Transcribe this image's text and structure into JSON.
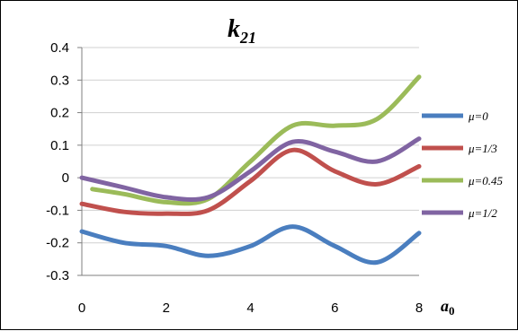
{
  "chart_data": {
    "type": "line",
    "title_main": "k",
    "title_sub": "21",
    "xlabel_main": "a",
    "xlabel_sub": "0",
    "xlim": [
      0,
      8
    ],
    "ylim": [
      -0.3,
      0.4
    ],
    "x_ticks": [
      "0",
      "2",
      "4",
      "6",
      "8"
    ],
    "y_ticks": [
      "0.4",
      "0.3",
      "0.2",
      "0.1",
      "0",
      "-0.1",
      "-0.2",
      "-0.3"
    ],
    "grid": true,
    "legend_position": "right",
    "series": [
      {
        "name": "μ=0",
        "color": "#4a7ebf",
        "x": [
          0,
          1,
          2,
          3,
          4,
          5,
          6,
          7,
          8
        ],
        "y": [
          -0.165,
          -0.2,
          -0.21,
          -0.24,
          -0.21,
          -0.15,
          -0.21,
          -0.26,
          -0.17
        ]
      },
      {
        "name": "μ=1/3",
        "color": "#c0504d",
        "x": [
          0,
          1,
          2,
          3,
          4,
          5,
          6,
          7,
          8
        ],
        "y": [
          -0.08,
          -0.105,
          -0.11,
          -0.1,
          -0.01,
          0.085,
          0.02,
          -0.02,
          0.035
        ]
      },
      {
        "name": "μ=0.45",
        "color": "#9bbb59",
        "x": [
          0.25,
          1,
          2,
          3,
          4,
          5,
          6,
          7,
          8
        ],
        "y": [
          -0.035,
          -0.05,
          -0.075,
          -0.065,
          0.05,
          0.16,
          0.16,
          0.18,
          0.31
        ]
      },
      {
        "name": "μ=1/2",
        "color": "#8064a2",
        "x": [
          0,
          1,
          2,
          3,
          4,
          5,
          6,
          7,
          8
        ],
        "y": [
          0,
          -0.03,
          -0.06,
          -0.06,
          0.02,
          0.11,
          0.08,
          0.05,
          0.12
        ]
      }
    ]
  }
}
